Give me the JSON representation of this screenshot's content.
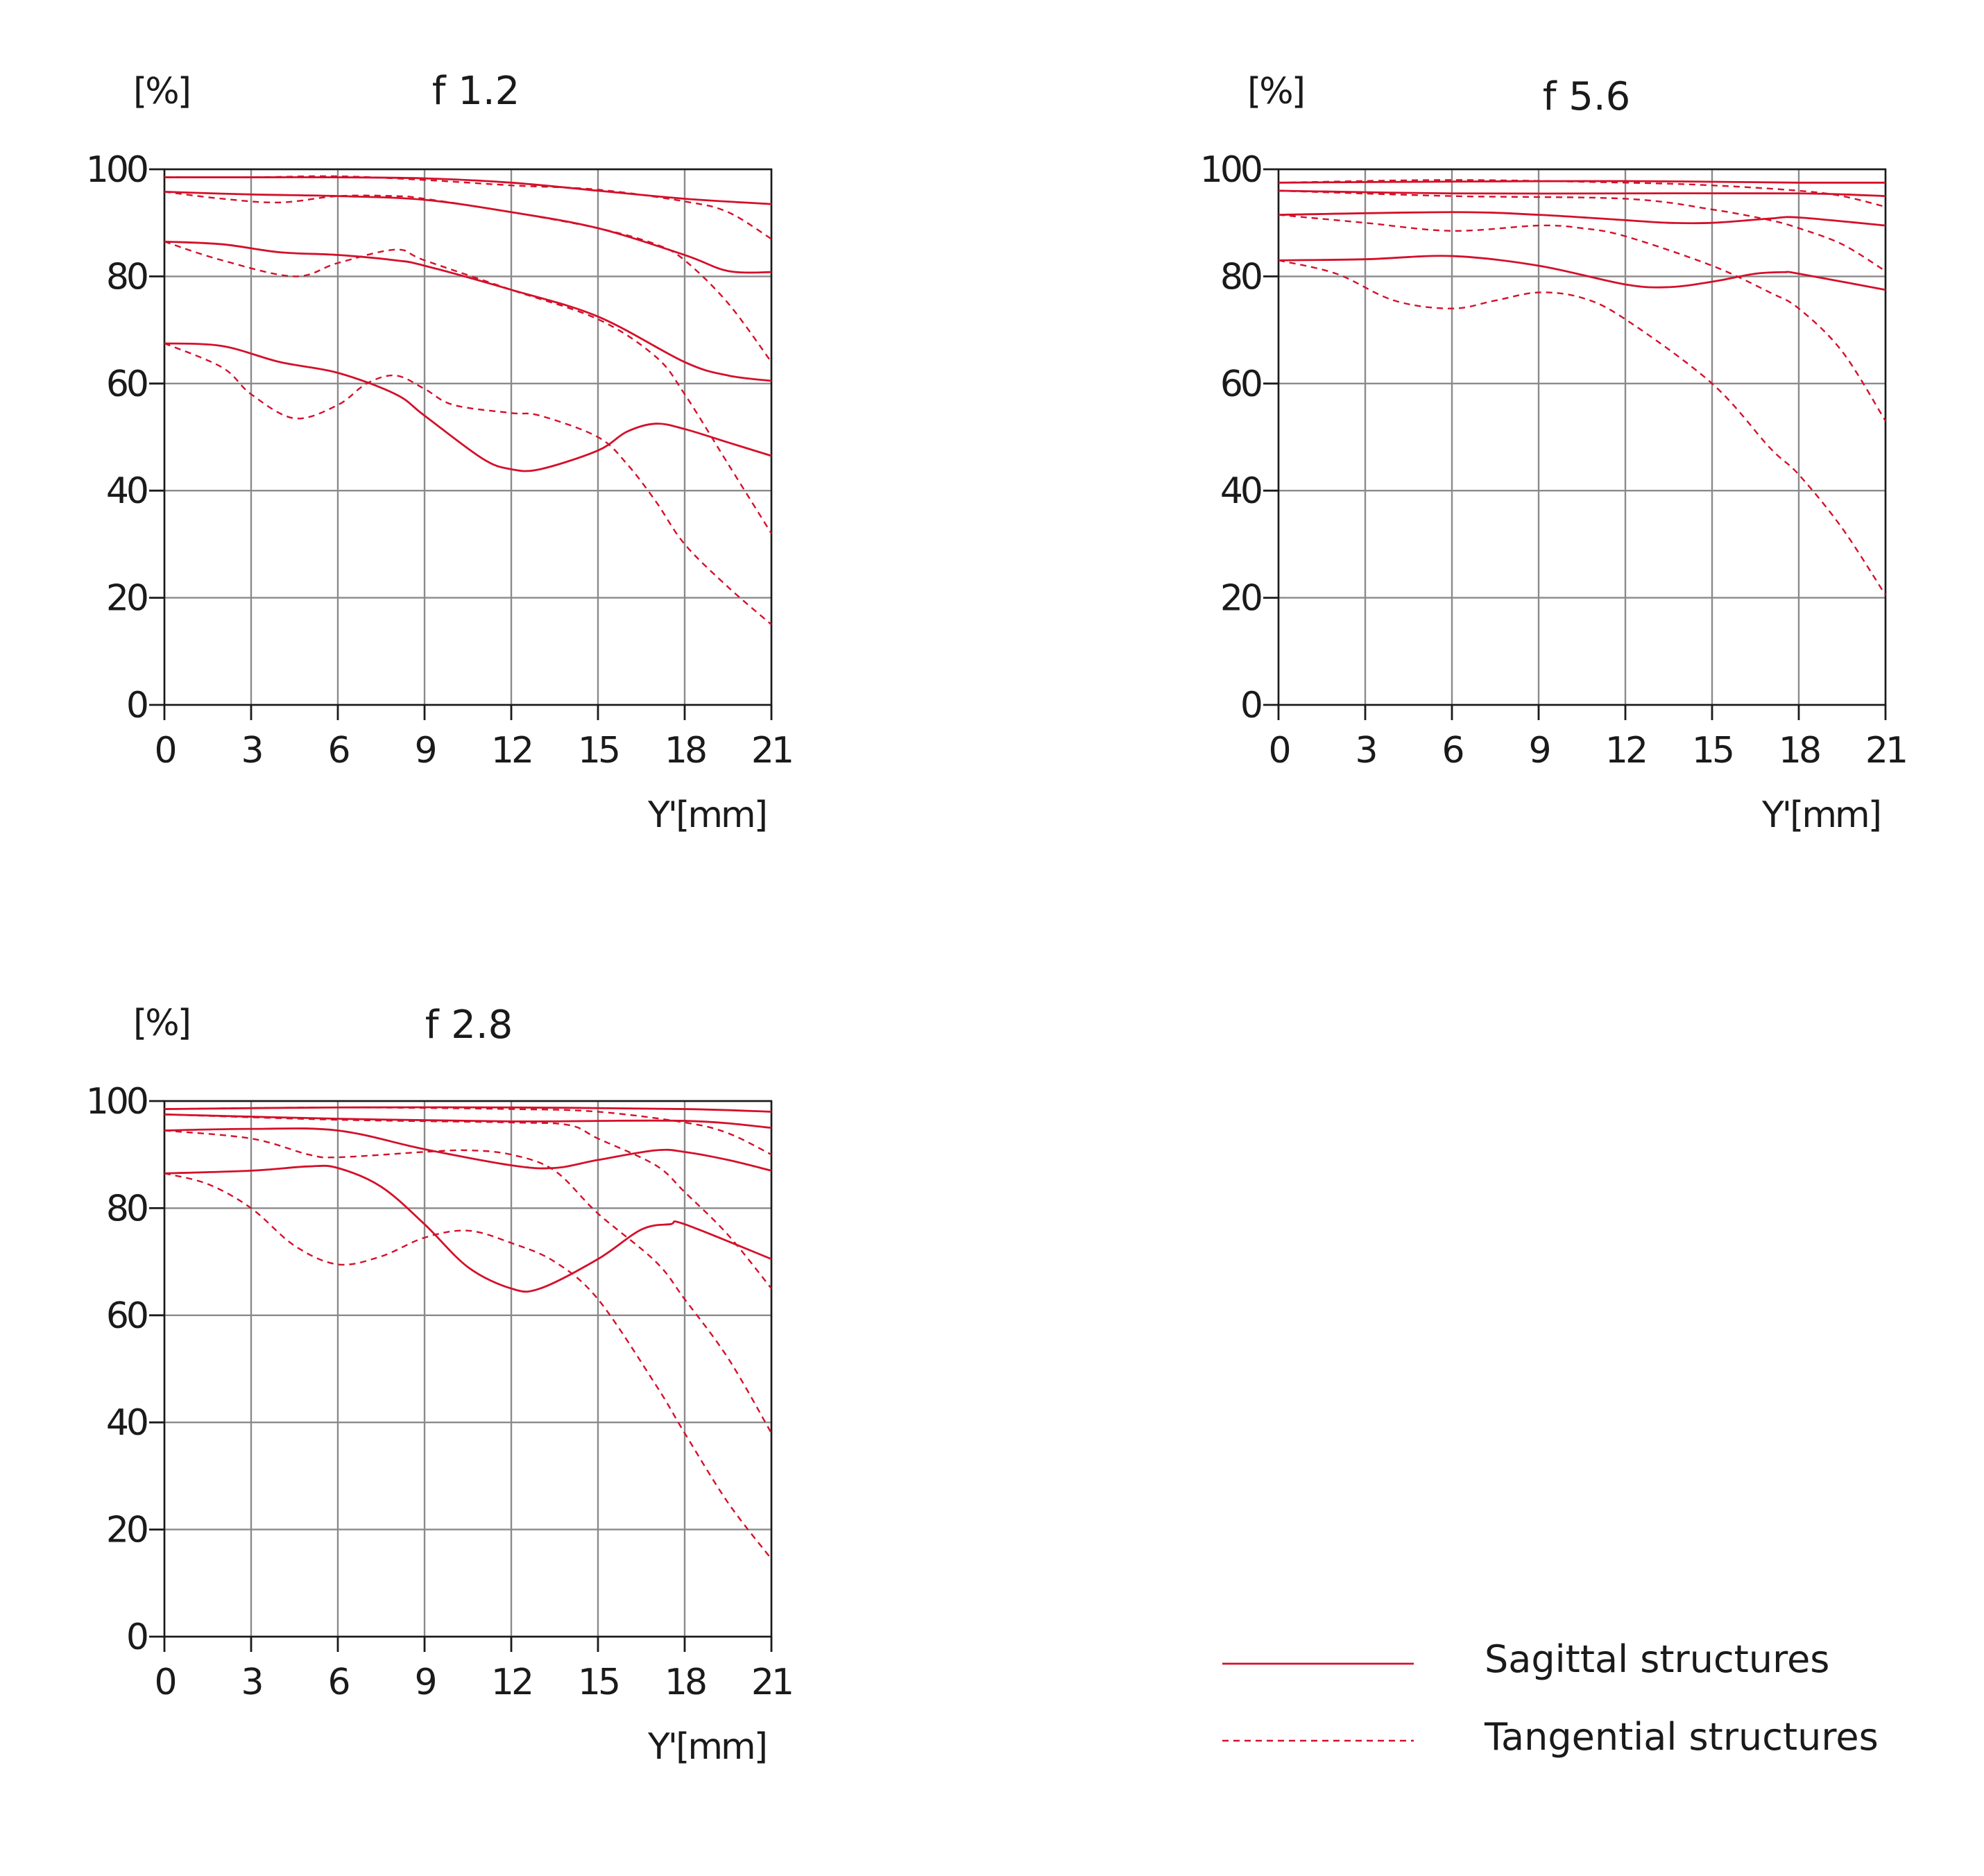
{
  "chart_data": [
    {
      "type": "line",
      "title": "f 1.2",
      "ylabel": "[%]",
      "xlabel": "Y'[mm]",
      "xlim": [
        0,
        21
      ],
      "ylim": [
        0,
        100
      ],
      "xticks": [
        "0",
        "3",
        "6",
        "9",
        "12",
        "15",
        "18",
        "21"
      ],
      "yticks": [
        "0",
        "20",
        "40",
        "60",
        "80",
        "100"
      ],
      "grid": true,
      "series": [
        {
          "style": "sagittal",
          "x": [
            0,
            3,
            6,
            9,
            12,
            15,
            18,
            21
          ],
          "y": [
            98.5,
            98.5,
            98.5,
            98.3,
            97.5,
            96,
            94.5,
            93.5
          ]
        },
        {
          "style": "tangential",
          "x": [
            0,
            3,
            6,
            9,
            12,
            15,
            18,
            19.5,
            21
          ],
          "y": [
            98.5,
            98.5,
            98.7,
            98,
            97,
            96.2,
            94,
            92,
            87
          ]
        },
        {
          "style": "sagittal",
          "x": [
            0,
            3,
            6,
            9,
            12,
            15,
            18,
            19.5,
            21
          ],
          "y": [
            95.8,
            95.3,
            95,
            94.3,
            92,
            89,
            84,
            81,
            80.8
          ]
        },
        {
          "style": "tangential",
          "x": [
            0,
            2,
            4,
            6,
            8,
            9,
            12,
            15,
            17,
            18,
            19.5,
            21
          ],
          "y": [
            95.8,
            94.5,
            93.8,
            95,
            95,
            94.5,
            92,
            89,
            86,
            83,
            75,
            64
          ]
        },
        {
          "style": "sagittal",
          "x": [
            0,
            2,
            4,
            6,
            8,
            9,
            12,
            15,
            18,
            19.5,
            21
          ],
          "y": [
            86.5,
            86,
            84.5,
            84,
            83,
            82,
            77.5,
            72.5,
            64,
            61.5,
            60.5
          ]
        },
        {
          "style": "tangential",
          "x": [
            0,
            2,
            4.5,
            6,
            8,
            9,
            12,
            15,
            17,
            18,
            19.5,
            21
          ],
          "y": [
            86.5,
            83,
            80,
            82.5,
            85,
            83,
            77.5,
            72,
            65,
            58,
            45,
            32
          ]
        },
        {
          "style": "sagittal",
          "x": [
            0,
            2,
            4,
            6,
            8,
            9,
            11,
            12,
            13,
            15,
            16,
            17,
            18,
            19.5,
            21
          ],
          "y": [
            67.5,
            67,
            64,
            62,
            58,
            54,
            46,
            44,
            44,
            47.5,
            51,
            52.5,
            51.5,
            49,
            46.5
          ]
        },
        {
          "style": "tangential",
          "x": [
            0,
            2,
            3,
            4.5,
            6,
            7,
            8,
            9,
            10,
            12,
            13,
            15,
            16,
            17,
            18,
            19.5,
            21
          ],
          "y": [
            67.5,
            63,
            58,
            53.5,
            56,
            60,
            61.5,
            59,
            56,
            54.5,
            54,
            50,
            45,
            38,
            30,
            22,
            15
          ]
        }
      ]
    },
    {
      "type": "line",
      "title": "f 5.6",
      "ylabel": "[%]",
      "xlabel": "Y'[mm]",
      "xlim": [
        0,
        21
      ],
      "ylim": [
        0,
        100
      ],
      "xticks": [
        "0",
        "3",
        "6",
        "9",
        "12",
        "15",
        "18",
        "21"
      ],
      "yticks": [
        "0",
        "20",
        "40",
        "60",
        "80",
        "100"
      ],
      "grid": true,
      "series": [
        {
          "style": "sagittal",
          "x": [
            0,
            6,
            12,
            18,
            21
          ],
          "y": [
            97.5,
            97.7,
            97.8,
            97.5,
            97.5
          ]
        },
        {
          "style": "tangential",
          "x": [
            0,
            6,
            12,
            15,
            18,
            19.5,
            21
          ],
          "y": [
            97.5,
            98,
            97.5,
            97,
            96,
            95,
            93
          ]
        },
        {
          "style": "sagittal",
          "x": [
            0,
            6,
            12,
            18,
            21
          ],
          "y": [
            96,
            95.5,
            95.5,
            95.5,
            95
          ]
        },
        {
          "style": "tangential",
          "x": [
            0,
            6,
            12,
            15,
            17,
            18,
            19.5,
            21
          ],
          "y": [
            96,
            95,
            94.5,
            92.5,
            90.5,
            89,
            86,
            81
          ]
        },
        {
          "style": "sagittal",
          "x": [
            0,
            6,
            9,
            12,
            13.5,
            15,
            17,
            18,
            21
          ],
          "y": [
            91.5,
            92,
            91.5,
            90.5,
            90,
            90,
            90.8,
            91,
            89.5
          ]
        },
        {
          "style": "tangential",
          "x": [
            0,
            3,
            6,
            9,
            10.5,
            12,
            15,
            17,
            18,
            19.5,
            21
          ],
          "y": [
            91.5,
            90,
            88.5,
            89.5,
            89,
            87.5,
            82,
            77,
            74,
            66,
            53
          ]
        },
        {
          "style": "sagittal",
          "x": [
            0,
            3,
            6,
            9,
            12,
            13.5,
            15,
            16.5,
            17.5,
            18,
            21
          ],
          "y": [
            83,
            83.2,
            83.8,
            82,
            78.5,
            78,
            79,
            80.5,
            80.8,
            80.5,
            77.5
          ]
        },
        {
          "style": "tangential",
          "x": [
            0,
            2,
            4,
            6,
            7.5,
            9,
            10.5,
            12,
            15,
            17,
            18,
            19.5,
            21
          ],
          "y": [
            83,
            80.5,
            75.5,
            74,
            75.5,
            77,
            76,
            72,
            60,
            48,
            43,
            33,
            20.5
          ]
        }
      ]
    },
    {
      "type": "line",
      "title": "f 2.8",
      "ylabel": "[%]",
      "xlabel": "Y'[mm]",
      "xlim": [
        0,
        21
      ],
      "ylim": [
        0,
        100
      ],
      "xticks": [
        "0",
        "3",
        "6",
        "9",
        "12",
        "15",
        "18",
        "21"
      ],
      "yticks": [
        "0",
        "20",
        "40",
        "60",
        "80",
        "100"
      ],
      "grid": true,
      "series": [
        {
          "style": "sagittal",
          "x": [
            0,
            6,
            12,
            18,
            21
          ],
          "y": [
            98.5,
            98.8,
            98.8,
            98.5,
            98
          ]
        },
        {
          "style": "tangential",
          "x": [
            0,
            6,
            12,
            15,
            18,
            19.5,
            21
          ],
          "y": [
            98.5,
            98.8,
            98.5,
            98,
            96,
            94,
            90
          ]
        },
        {
          "style": "sagittal",
          "x": [
            0,
            6,
            12,
            18,
            21
          ],
          "y": [
            97.5,
            96.7,
            96.2,
            96.3,
            95
          ]
        },
        {
          "style": "tangential",
          "x": [
            0,
            6,
            12,
            14,
            15,
            17,
            18,
            19.5,
            21
          ],
          "y": [
            97.5,
            96.5,
            96,
            95.5,
            93,
            88,
            83,
            75,
            65
          ]
        },
        {
          "style": "sagittal",
          "x": [
            0,
            3,
            6,
            9,
            12,
            13.5,
            15,
            17,
            18,
            19.5,
            21
          ],
          "y": [
            94.5,
            94.8,
            94.5,
            91,
            88,
            87.5,
            89,
            90.8,
            90.5,
            89,
            87
          ]
        },
        {
          "style": "tangential",
          "x": [
            0,
            3,
            5,
            6,
            9,
            10.5,
            12,
            13.5,
            15,
            17,
            18,
            19.5,
            21
          ],
          "y": [
            94.5,
            93,
            90,
            89.5,
            90.5,
            90.8,
            90,
            87,
            79,
            70,
            63,
            52,
            38
          ]
        },
        {
          "style": "sagittal",
          "x": [
            0,
            3,
            5,
            6,
            7.5,
            9,
            10.5,
            12,
            13,
            15,
            16.5,
            17.5,
            18,
            21
          ],
          "y": [
            86.5,
            87,
            87.8,
            87.5,
            84,
            77,
            69,
            65,
            65,
            70.5,
            76,
            77,
            77,
            70.5
          ]
        },
        {
          "style": "tangential",
          "x": [
            0,
            1.5,
            3,
            4.5,
            6,
            7.5,
            9,
            10.5,
            12,
            13.5,
            15,
            17,
            18,
            19.5,
            21
          ],
          "y": [
            86.5,
            84.5,
            80,
            73,
            69.5,
            71,
            74.5,
            75.8,
            73.5,
            70,
            63,
            47,
            38,
            25,
            14.5
          ]
        }
      ]
    }
  ],
  "legend": {
    "sagittal_label": "Sagittal structures",
    "tangential_label": "Tangential structures",
    "color": "#d4102a"
  }
}
